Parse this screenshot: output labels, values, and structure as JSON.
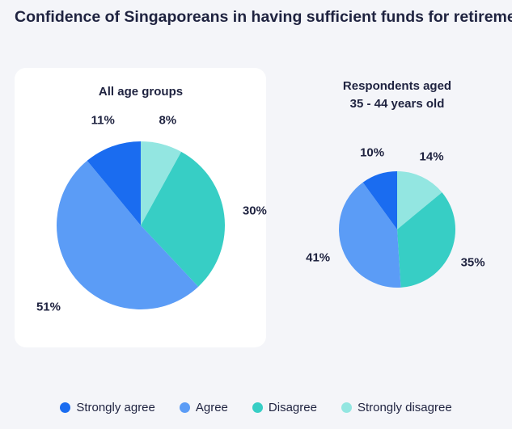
{
  "title": "Confidence of Singaporeans in having sufficient funds for retirement",
  "legend": [
    {
      "label": "Strongly agree",
      "color": "#1a6cf0"
    },
    {
      "label": "Agree",
      "color": "#5b9cf6"
    },
    {
      "label": "Disagree",
      "color": "#37cec5"
    },
    {
      "label": "Strongly disagree",
      "color": "#93e6e1"
    }
  ],
  "chart_data": [
    {
      "type": "pie",
      "title": "All age groups",
      "categories": [
        "Strongly agree",
        "Agree",
        "Disagree",
        "Strongly disagree"
      ],
      "values": [
        11,
        51,
        30,
        8
      ],
      "labels": [
        "11%",
        "51%",
        "30%",
        "8%"
      ]
    },
    {
      "type": "pie",
      "title": "Respondents aged 35 - 44 years old",
      "title_lines": [
        "Respondents aged",
        "35 - 44 years old"
      ],
      "categories": [
        "Strongly agree",
        "Agree",
        "Disagree",
        "Strongly disagree"
      ],
      "values": [
        10,
        41,
        35,
        14
      ],
      "labels": [
        "10%",
        "41%",
        "35%",
        "14%"
      ]
    }
  ]
}
